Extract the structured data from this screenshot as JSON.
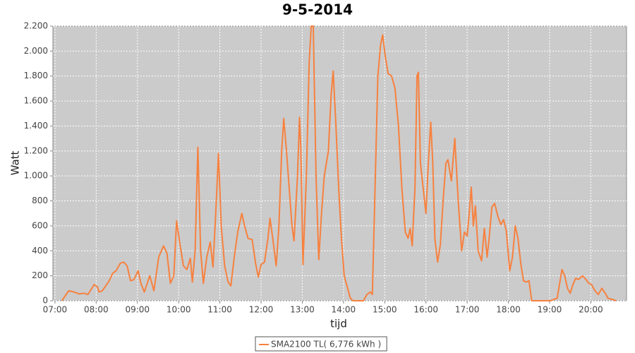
{
  "chart_data": {
    "type": "line",
    "title": "9-5-2014",
    "xlabel": "tijd",
    "ylabel": "Watt",
    "x": [
      "07:10",
      "07:20",
      "07:28",
      "07:35",
      "07:43",
      "07:48",
      "07:57",
      "08:02",
      "08:04",
      "08:09",
      "08:19",
      "08:24",
      "08:29",
      "08:35",
      "08:40",
      "08:45",
      "08:50",
      "08:55",
      "09:01",
      "09:05",
      "09:10",
      "09:18",
      "09:24",
      "09:31",
      "09:38",
      "09:43",
      "09:48",
      "09:53",
      "09:57",
      "10:02",
      "10:07",
      "10:12",
      "10:17",
      "10:20",
      "10:24",
      "10:28",
      "10:32",
      "10:36",
      "10:41",
      "10:46",
      "10:50",
      "10:54",
      "10:58",
      "11:02",
      "11:07",
      "11:12",
      "11:16",
      "11:21",
      "11:26",
      "11:32",
      "11:36",
      "11:41",
      "11:47",
      "11:52",
      "11:56",
      "12:00",
      "12:05",
      "12:10",
      "12:13",
      "12:17",
      "12:22",
      "12:26",
      "12:30",
      "12:33",
      "12:37",
      "12:41",
      "12:45",
      "12:48",
      "12:53",
      "12:56",
      "12:58",
      "13:01",
      "13:06",
      "13:10",
      "13:13",
      "13:16",
      "13:20",
      "13:24",
      "13:28",
      "13:32",
      "13:38",
      "13:42",
      "13:45",
      "13:49",
      "13:53",
      "13:57",
      "14:01",
      "14:06",
      "14:10",
      "14:14",
      "14:19",
      "14:29",
      "14:34",
      "14:39",
      "14:42",
      "14:45",
      "14:50",
      "14:54",
      "14:57",
      "15:01",
      "15:05",
      "15:10",
      "15:15",
      "15:20",
      "15:25",
      "15:30",
      "15:34",
      "15:37",
      "15:40",
      "15:44",
      "15:47",
      "15:49",
      "15:52",
      "15:56",
      "16:00",
      "16:03",
      "16:07",
      "16:10",
      "16:13",
      "16:17",
      "16:21",
      "16:25",
      "16:29",
      "16:32",
      "16:37",
      "16:42",
      "16:47",
      "16:52",
      "16:56",
      "17:00",
      "17:03",
      "17:06",
      "17:09",
      "17:12",
      "17:16",
      "17:21",
      "17:25",
      "17:29",
      "17:32",
      "17:36",
      "17:40",
      "17:45",
      "17:49",
      "17:53",
      "17:57",
      "18:02",
      "18:06",
      "18:10",
      "18:14",
      "18:18",
      "18:22",
      "18:26",
      "18:30",
      "18:34",
      "18:41",
      "19:01",
      "19:11",
      "19:18",
      "19:22",
      "19:26",
      "19:30",
      "19:34",
      "19:38",
      "19:42",
      "19:48",
      "19:53",
      "19:57",
      "20:01",
      "20:06",
      "20:11",
      "20:16",
      "20:21",
      "20:25",
      "20:32",
      "20:37"
    ],
    "series": [
      {
        "name": "SMA2100 TL( 6,776 kWh )",
        "color": "#f7813f",
        "values": [
          0,
          80,
          70,
          55,
          60,
          50,
          130,
          110,
          70,
          80,
          160,
          220,
          240,
          300,
          310,
          280,
          160,
          170,
          240,
          140,
          70,
          200,
          80,
          350,
          440,
          380,
          140,
          200,
          640,
          450,
          280,
          250,
          340,
          150,
          400,
          1230,
          400,
          140,
          350,
          470,
          270,
          700,
          1180,
          600,
          280,
          150,
          120,
          350,
          550,
          700,
          600,
          500,
          490,
          300,
          190,
          290,
          310,
          500,
          660,
          500,
          280,
          600,
          1200,
          1460,
          1200,
          900,
          600,
          480,
          1000,
          1470,
          1200,
          290,
          1000,
          1900,
          2200,
          2200,
          1000,
          330,
          700,
          1000,
          1200,
          1650,
          1840,
          1400,
          900,
          500,
          200,
          100,
          20,
          0,
          0,
          0,
          50,
          70,
          50,
          700,
          1800,
          2050,
          2130,
          1950,
          1820,
          1800,
          1700,
          1400,
          900,
          550,
          500,
          580,
          440,
          900,
          1800,
          1830,
          1100,
          900,
          700,
          1050,
          1430,
          1100,
          500,
          310,
          450,
          800,
          1100,
          1130,
          960,
          1300,
          800,
          400,
          550,
          520,
          700,
          910,
          600,
          760,
          400,
          320,
          580,
          350,
          500,
          750,
          780,
          670,
          610,
          650,
          560,
          240,
          350,
          600,
          500,
          300,
          160,
          150,
          160,
          0,
          0,
          0,
          20,
          250,
          200,
          100,
          60,
          130,
          180,
          170,
          200,
          170,
          140,
          130,
          80,
          50,
          100,
          60,
          20,
          10,
          0
        ]
      }
    ],
    "xlim": [
      "06:57",
      "20:52"
    ],
    "xticks": [
      "07:00",
      "08:00",
      "09:00",
      "10:00",
      "11:00",
      "12:00",
      "13:00",
      "14:00",
      "15:00",
      "16:00",
      "17:00",
      "18:00",
      "19:00",
      "20:00"
    ],
    "ylim": [
      0,
      2200
    ],
    "yticks": [
      0,
      200,
      400,
      600,
      800,
      {
        "value": 1000,
        "label": "1.000"
      },
      {
        "value": 1200,
        "label": "1.200"
      },
      {
        "value": 1400,
        "label": "1.400"
      },
      {
        "value": 1600,
        "label": "1.600"
      },
      {
        "value": 1800,
        "label": "1.800"
      },
      {
        "value": 2000,
        "label": "2.000"
      },
      {
        "value": 2200,
        "label": "2.200"
      }
    ],
    "grid": true,
    "legend": "bottom"
  }
}
